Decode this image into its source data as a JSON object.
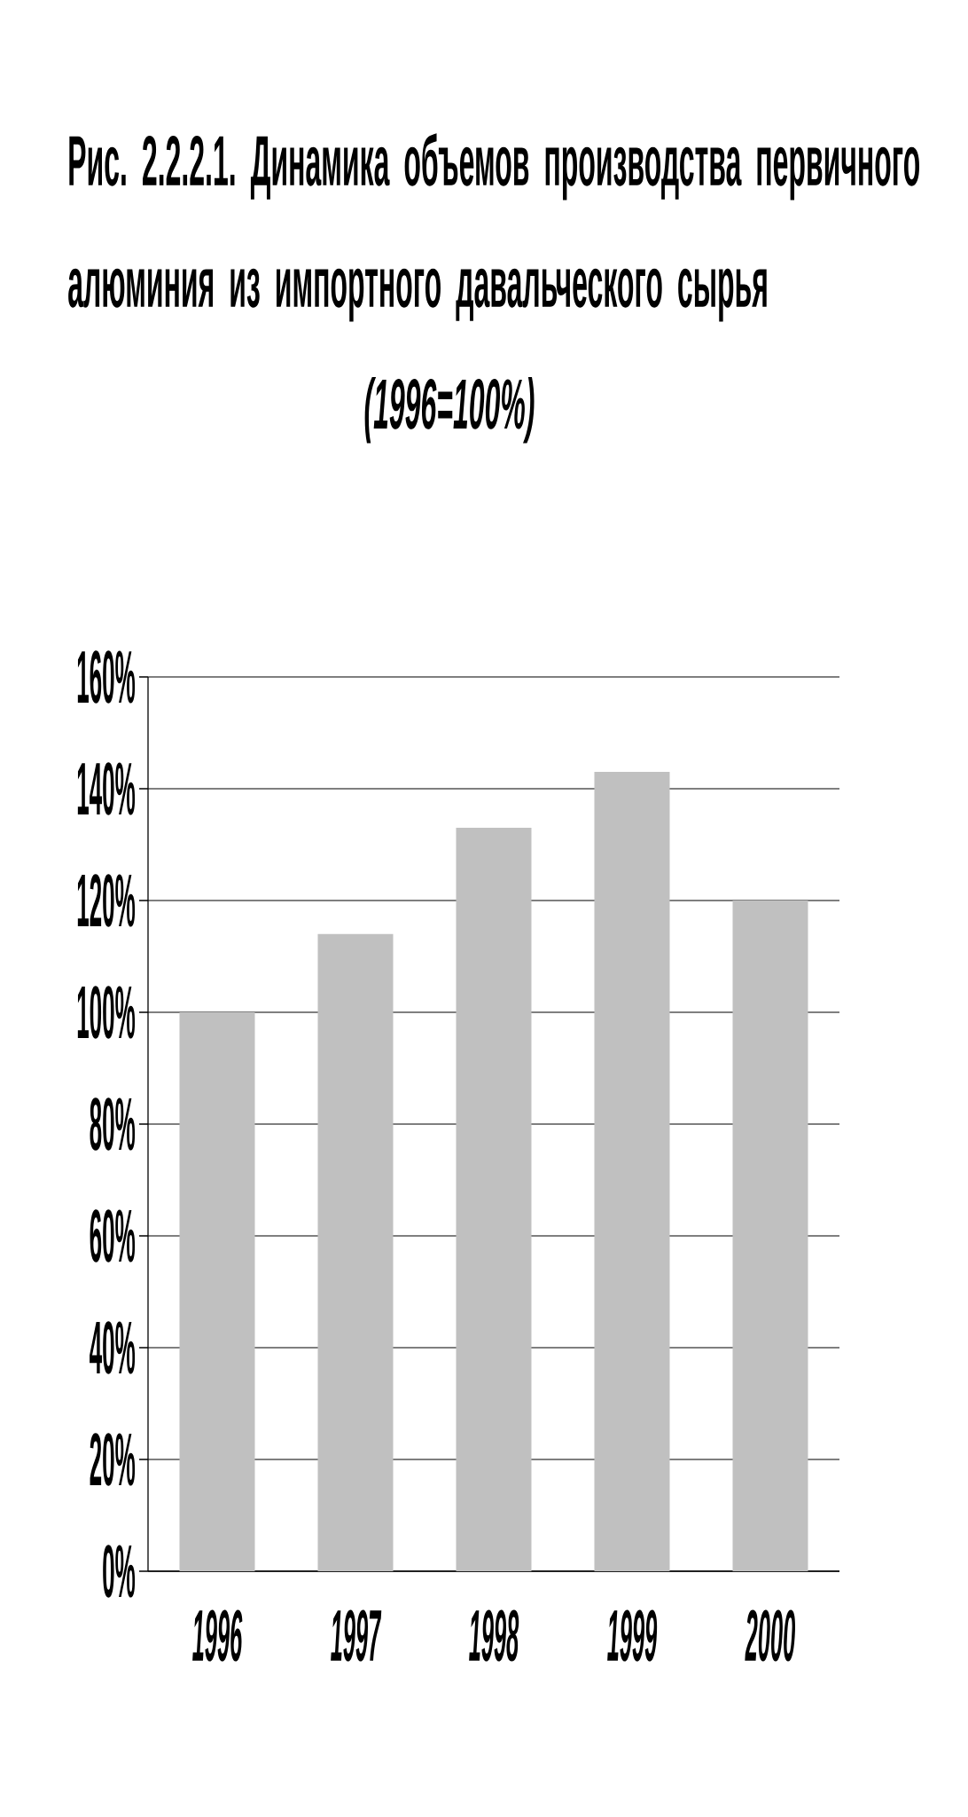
{
  "chart_data": {
    "type": "bar",
    "title": "Рис. 2.2.2.1. Динамика объемов производства первичного алюминия из импортного давальческого сырья",
    "subtitle": "(1996=100%)",
    "categories": [
      "1996",
      "1997",
      "1998",
      "1999",
      "2000"
    ],
    "values": [
      100,
      114,
      133,
      143,
      120
    ],
    "color": "#c0c0c0",
    "ylim": [
      0,
      160
    ],
    "yticks": [
      {
        "value": 0,
        "label": "0%"
      },
      {
        "value": 20,
        "label": "20%"
      },
      {
        "value": 40,
        "label": "40%"
      },
      {
        "value": 60,
        "label": "60%"
      },
      {
        "value": 80,
        "label": "80%"
      },
      {
        "value": 100,
        "label": "100%"
      },
      {
        "value": 120,
        "label": "120%"
      },
      {
        "value": 140,
        "label": "140%"
      },
      {
        "value": 160,
        "label": "160%"
      }
    ],
    "grid": "y"
  }
}
